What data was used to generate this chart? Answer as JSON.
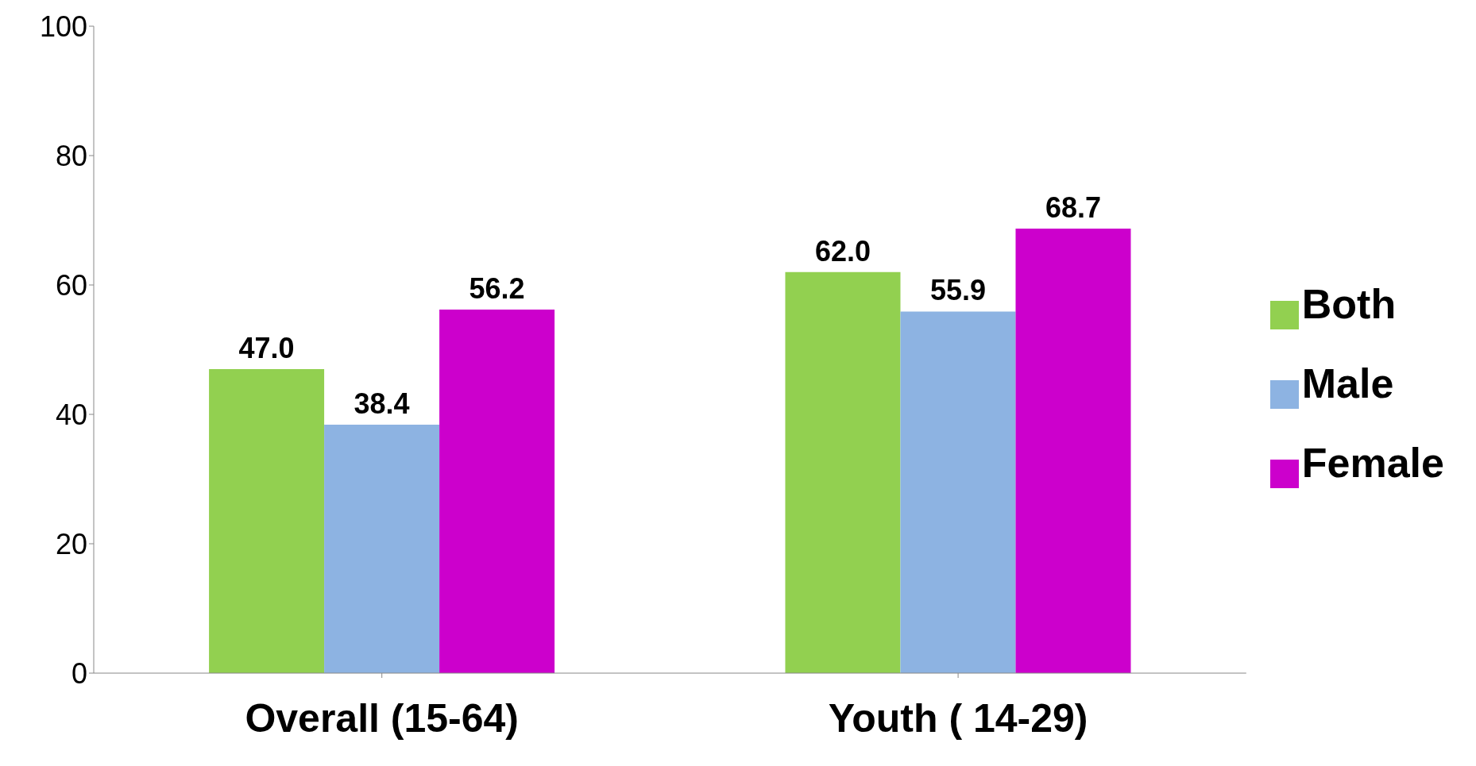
{
  "chart_data": {
    "type": "bar",
    "categories": [
      "Overall (15-64)",
      "Youth ( 14-29)"
    ],
    "series": [
      {
        "name": "Both",
        "color": "#92d050",
        "values": [
          47.0,
          62.0
        ],
        "value_labels": [
          "47.0",
          "62.0"
        ]
      },
      {
        "name": "Male",
        "color": "#8db3e2",
        "values": [
          38.4,
          55.9
        ],
        "value_labels": [
          "38.4",
          "55.9"
        ]
      },
      {
        "name": "Female",
        "color": "#cc00cc",
        "values": [
          56.2,
          68.7
        ],
        "value_labels": [
          "56.2",
          "68.7"
        ]
      }
    ],
    "ylim": [
      0,
      100
    ],
    "yticks": [
      0,
      20,
      40,
      60,
      80,
      100
    ],
    "grid": false,
    "legend": "right"
  }
}
